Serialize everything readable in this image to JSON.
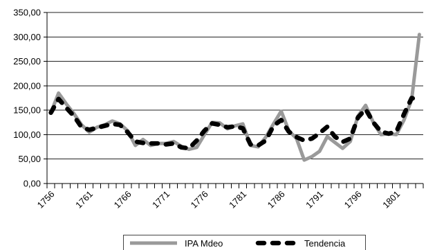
{
  "chart_data": {
    "type": "line",
    "x": [
      1756,
      1757,
      1758,
      1759,
      1760,
      1761,
      1762,
      1763,
      1764,
      1765,
      1766,
      1767,
      1768,
      1769,
      1770,
      1771,
      1772,
      1773,
      1774,
      1775,
      1776,
      1777,
      1778,
      1779,
      1780,
      1781,
      1782,
      1783,
      1784,
      1785,
      1786,
      1787,
      1788,
      1789,
      1790,
      1791,
      1792,
      1793,
      1794,
      1795,
      1796,
      1797,
      1798,
      1799,
      1800,
      1801,
      1802,
      1803,
      1804
    ],
    "x_tick_labels": [
      "1756",
      "1761",
      "1766",
      "1771",
      "1776",
      "1781",
      "1786",
      "1791",
      "1796",
      "1801"
    ],
    "ylim": [
      0,
      350
    ],
    "y_ticks": [
      0,
      50,
      100,
      150,
      200,
      250,
      300,
      350
    ],
    "y_tick_labels": [
      "0,00",
      "50,00",
      "100,00",
      "150,00",
      "200,00",
      "250,00",
      "300,00",
      "350,00"
    ],
    "grid": true,
    "legend_position": "bottom",
    "series": [
      {
        "name": "IPA Mdeo",
        "color": "#9a9a9a",
        "style": "solid",
        "values": [
          145,
          185,
          163,
          143,
          120,
          105,
          115,
          120,
          128,
          122,
          108,
          78,
          90,
          78,
          82,
          82,
          86,
          76,
          70,
          74,
          100,
          125,
          124,
          112,
          118,
          122,
          78,
          75,
          95,
          122,
          148,
          108,
          92,
          48,
          55,
          66,
          96,
          84,
          72,
          86,
          138,
          160,
          125,
          100,
          102,
          100,
          130,
          172,
          305
        ]
      },
      {
        "name": "Tendencia",
        "color": "#000000",
        "style": "dashed",
        "values": [
          145,
          173,
          155,
          138,
          115,
          110,
          114,
          118,
          122,
          120,
          105,
          86,
          83,
          82,
          82,
          80,
          82,
          74,
          72,
          88,
          108,
          123,
          120,
          115,
          117,
          113,
          80,
          78,
          88,
          118,
          130,
          106,
          95,
          88,
          92,
          103,
          116,
          96,
          85,
          92,
          135,
          152,
          125,
          106,
          102,
          106,
          142,
          175,
          170
        ]
      }
    ]
  }
}
